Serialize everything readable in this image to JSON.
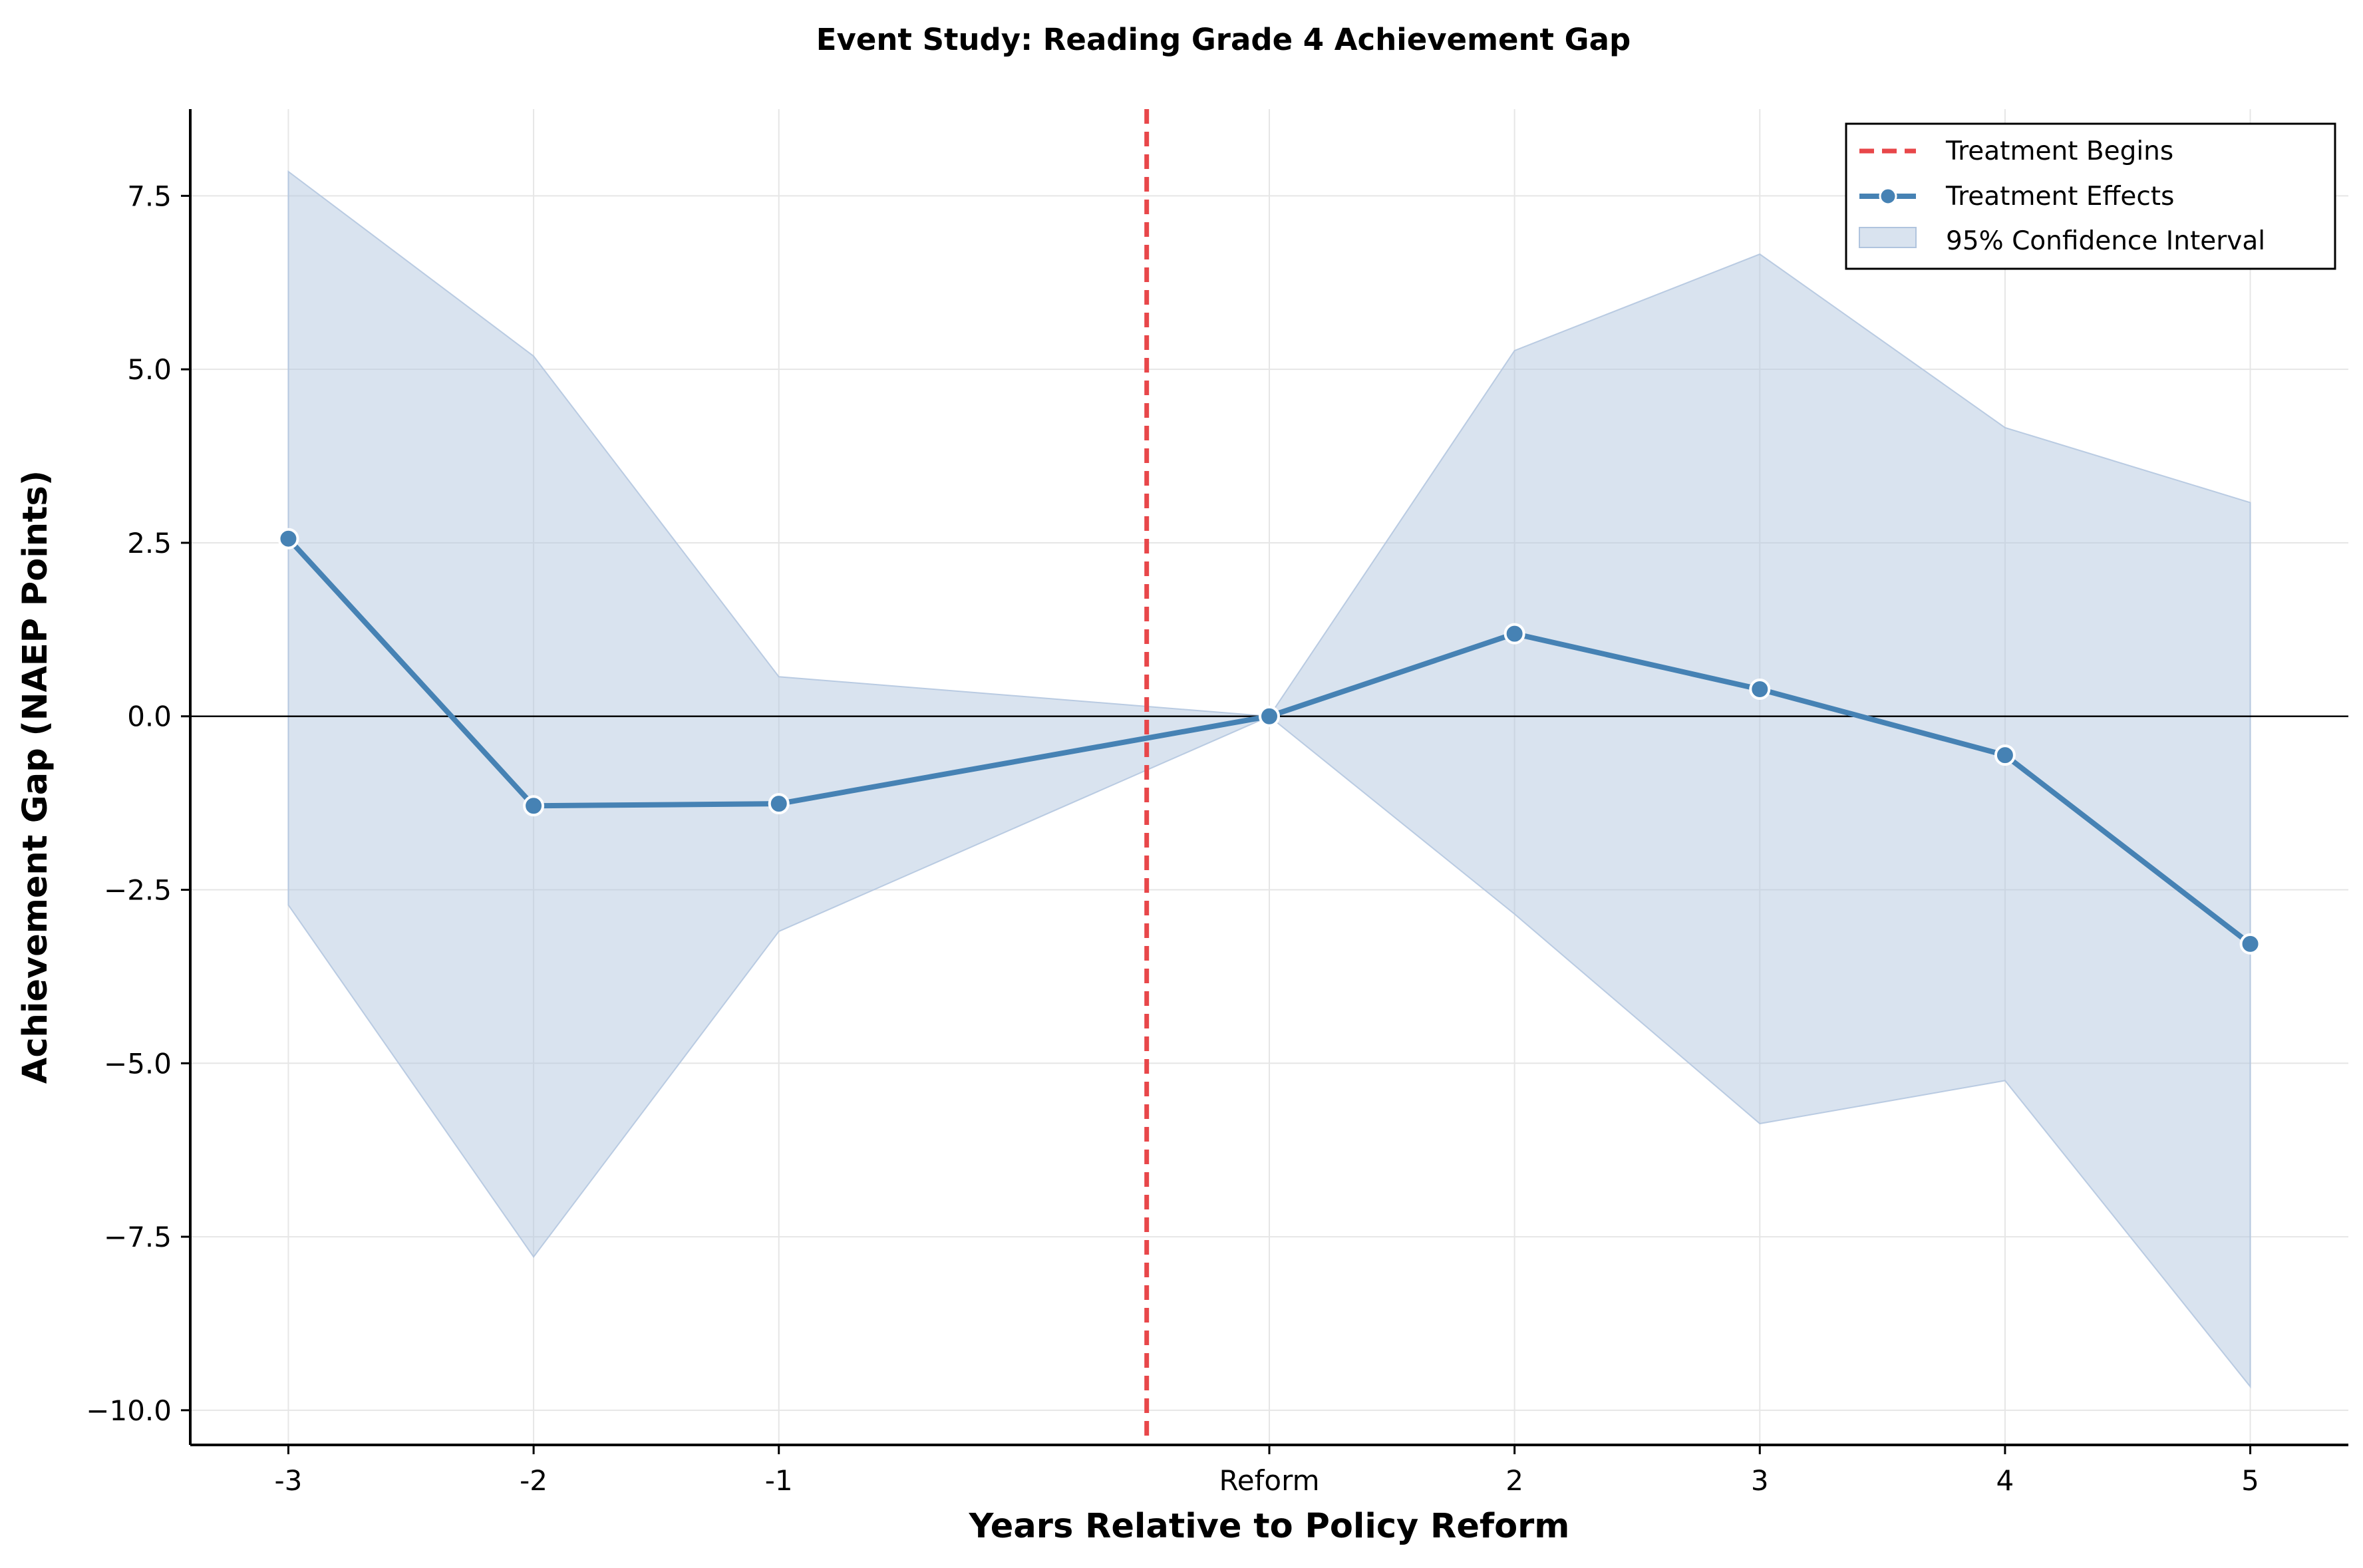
{
  "chart_data": {
    "type": "line",
    "title": "Event Study: Reading Grade 4 Achievement Gap",
    "xlabel": "Years Relative to Policy Reform",
    "ylabel": "Achievement Gap (NAEP Points)",
    "x": [
      -3,
      -2,
      -1,
      1,
      2,
      3,
      4,
      5
    ],
    "x_tick_labels": [
      "-3",
      "-2",
      "-1",
      "Reform",
      "2",
      "3",
      "4",
      "5"
    ],
    "xlim": [
      -3.4,
      5.4
    ],
    "ylim": [
      -10.5,
      8.75
    ],
    "y_ticks": [
      7.5,
      5.0,
      2.5,
      0.0,
      -2.5,
      -5.0,
      -7.5,
      -10.0
    ],
    "y_tick_labels": [
      "7.5",
      "5.0",
      "2.5",
      "0.0",
      "−2.5",
      "−5.0",
      "−7.5",
      "−10.0"
    ],
    "treatment_line_x": 0.5,
    "grid": true,
    "series": [
      {
        "name": "Treatment Effects",
        "values": [
          2.56,
          -1.29,
          -1.26,
          0.0,
          1.19,
          0.39,
          -0.56,
          -3.28
        ],
        "color": "#4682b4"
      }
    ],
    "confidence_interval": {
      "name": "95% Confidence Interval",
      "lower": [
        -2.72,
        -7.79,
        -3.1,
        0.0,
        -2.85,
        -5.87,
        -5.25,
        -9.66
      ],
      "upper": [
        7.85,
        5.19,
        0.57,
        0.0,
        5.27,
        6.66,
        4.16,
        3.08
      ],
      "color": "#b0c4de"
    },
    "reference_line": {
      "name": "Treatment Begins",
      "color": "#e8474a"
    },
    "legend": {
      "position": "top-right",
      "entries": [
        "Treatment Begins",
        "Treatment Effects",
        "95% Confidence Interval"
      ]
    }
  }
}
